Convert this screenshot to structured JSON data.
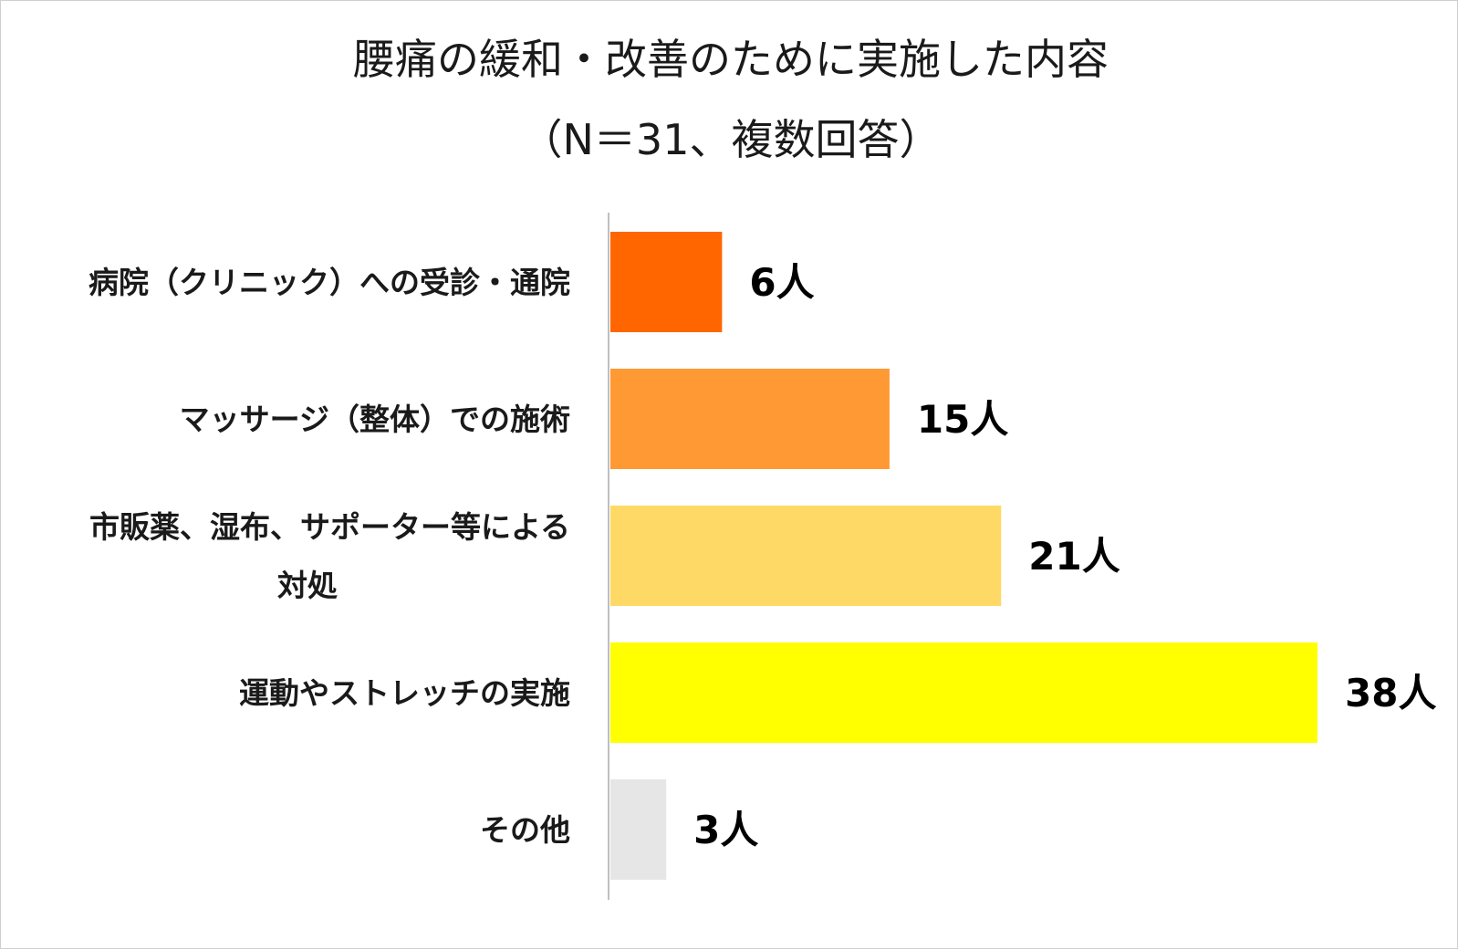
{
  "chart_data": {
    "type": "bar",
    "orientation": "horizontal",
    "title": "腰痛の緩和・改善のために実施した内容",
    "subtitle": "（N＝31、複数回答）",
    "categories": [
      [
        "病院（クリニック）への受診・通院"
      ],
      [
        "マッサージ（整体）での施術"
      ],
      [
        "市販薬、湿布、サポーター等による",
        "対処"
      ],
      [
        "運動やストレッチの実施"
      ],
      [
        "その他"
      ]
    ],
    "values": [
      6,
      15,
      21,
      38,
      3
    ],
    "value_labels": [
      "6人",
      "15人",
      "21人",
      "38人",
      "3人"
    ],
    "colors": [
      "#ff6600",
      "#ff9933",
      "#ffd966",
      "#ffff00",
      "#e6e6e6"
    ],
    "xlim": [
      0,
      38
    ],
    "grid": false,
    "legend": "none"
  }
}
